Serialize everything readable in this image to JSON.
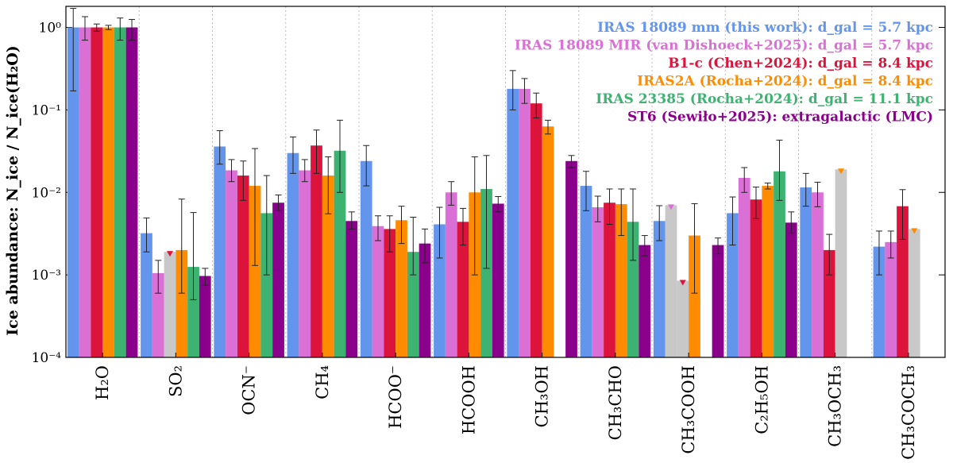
{
  "chart_data": {
    "type": "bar",
    "log_y": true,
    "y_label": "Ice abundance: N_ice / N_ice(H₂O)",
    "categories": [
      "H₂O",
      "SO₂",
      "OCN⁻",
      "CH₄",
      "HCOO⁻",
      "HCOOH",
      "CH₃OH",
      "CH₃CHO",
      "CH₃COOH",
      "C₂H₅OH",
      "CH₃OCH₃",
      "CH₃COCH₃"
    ],
    "ylim": [
      0.0001,
      1.8
    ],
    "yticks": [
      {
        "value": 0.0001,
        "label": "10⁻⁴"
      },
      {
        "value": 0.001,
        "label": "10⁻³"
      },
      {
        "value": 0.01,
        "label": "10⁻²"
      },
      {
        "value": 0.1,
        "label": "10⁻¹"
      },
      {
        "value": 1,
        "label": "10⁰"
      }
    ],
    "legend": "upper right",
    "upper_limit_color": "#c8c8c8",
    "series": [
      {
        "name": "IRAS 18089 mm (this work): d_gal = 5.7 kpc",
        "color": "#6495ed",
        "values": [
          1.0,
          0.0032,
          0.036,
          0.03,
          0.024,
          0.0041,
          0.18,
          0.012,
          0.0045,
          0.0056,
          0.0115,
          0.0022
        ],
        "error_low": [
          0.17,
          0.0019,
          0.022,
          0.017,
          0.012,
          0.0016,
          0.1,
          0.006,
          0.0026,
          0.0023,
          0.0068,
          0.001
        ],
        "error_high": [
          1.7,
          0.0049,
          0.056,
          0.047,
          0.037,
          0.0066,
          0.3,
          0.018,
          0.0069,
          0.0088,
          0.017,
          0.0034
        ],
        "upper_limits": [
          false,
          false,
          false,
          false,
          false,
          false,
          false,
          false,
          false,
          false,
          false,
          false
        ]
      },
      {
        "name": "IRAS 18089 MIR (van Dishoeck+2025): d_gal = 5.7 kpc",
        "color": "#da70d6",
        "values": [
          1.0,
          0.00105,
          0.0185,
          0.0185,
          0.0039,
          0.01,
          0.18,
          0.0066,
          0.007,
          0.015,
          0.01,
          0.0025
        ],
        "error_low": [
          0.7,
          0.0006,
          0.0135,
          0.0135,
          0.0026,
          0.007,
          0.12,
          0.0044,
          null,
          0.01,
          0.0067,
          0.0016
        ],
        "error_high": [
          1.35,
          0.0015,
          0.025,
          0.025,
          0.0052,
          0.0135,
          0.24,
          0.009,
          null,
          0.02,
          0.0133,
          0.0034
        ],
        "upper_limits": [
          false,
          false,
          false,
          false,
          false,
          false,
          false,
          false,
          true,
          false,
          false,
          false
        ]
      },
      {
        "name": "B1-c (Chen+2024): d_gal = 8.4 kpc",
        "color": "#dc143c",
        "values": [
          1.0,
          0.0019,
          0.016,
          0.037,
          0.0036,
          0.0044,
          0.12,
          0.0075,
          0.00085,
          0.0082,
          0.002,
          0.0068
        ],
        "error_low": [
          0.9,
          null,
          0.008,
          0.017,
          0.0019,
          0.0023,
          0.08,
          0.0041,
          null,
          0.0048,
          0.001,
          0.0027
        ],
        "error_high": [
          1.1,
          null,
          0.024,
          0.057,
          0.0052,
          0.0064,
          0.16,
          0.011,
          null,
          0.0116,
          0.0031,
          0.0108
        ],
        "upper_limits": [
          false,
          true,
          false,
          false,
          false,
          false,
          false,
          false,
          true,
          false,
          false,
          false
        ]
      },
      {
        "name": "IRAS2A (Rocha+2024): d_gal = 8.4 kpc",
        "color": "#ff8c00",
        "values": [
          1.0,
          0.002,
          0.012,
          0.016,
          0.0046,
          0.01,
          0.063,
          0.0072,
          0.003,
          0.012,
          0.019,
          0.0036
        ],
        "error_low": [
          0.94,
          0.0006,
          0.0013,
          0.0055,
          0.0024,
          0.001,
          0.051,
          0.003,
          0.0006,
          0.011,
          null,
          null
        ],
        "error_high": [
          1.06,
          0.0083,
          0.034,
          0.027,
          0.0068,
          0.027,
          0.075,
          0.011,
          0.0073,
          0.013,
          null,
          null
        ],
        "upper_limits": [
          false,
          false,
          false,
          false,
          false,
          false,
          false,
          false,
          false,
          false,
          true,
          true
        ]
      },
      {
        "name": "IRAS 23385 (Rocha+2024): d_gal = 11.1 kpc",
        "color": "#3cb371",
        "values": [
          1.0,
          0.00125,
          0.0056,
          0.032,
          0.0019,
          0.011,
          null,
          0.0044,
          null,
          0.018,
          null,
          null
        ],
        "error_low": [
          0.7,
          0.0005,
          0.001,
          0.01,
          0.001,
          0.0012,
          null,
          0.0015,
          null,
          0.008,
          null,
          null
        ],
        "error_high": [
          1.3,
          0.0057,
          0.016,
          0.075,
          0.005,
          0.028,
          null,
          0.011,
          null,
          0.043,
          null,
          null
        ],
        "upper_limits": [
          false,
          false,
          false,
          false,
          false,
          false,
          false,
          false,
          false,
          false,
          false,
          false
        ]
      },
      {
        "name": "ST6 (Sewiło+2025): extragalactic (LMC)",
        "color": "#8b008b",
        "values": [
          1.0,
          0.00097,
          0.0075,
          0.0045,
          0.0024,
          0.0073,
          0.024,
          0.0023,
          0.0023,
          0.0043,
          null,
          null
        ],
        "error_low": [
          0.7,
          0.00075,
          0.006,
          0.0036,
          0.0014,
          0.0058,
          0.02,
          0.0017,
          0.0018,
          0.0032,
          null,
          null
        ],
        "error_high": [
          1.25,
          0.0012,
          0.0093,
          0.0058,
          0.0036,
          0.0089,
          0.028,
          0.003,
          0.0028,
          0.0058,
          null,
          null
        ],
        "upper_limits": [
          false,
          false,
          false,
          false,
          false,
          false,
          false,
          false,
          false,
          false,
          false,
          false
        ]
      }
    ]
  }
}
